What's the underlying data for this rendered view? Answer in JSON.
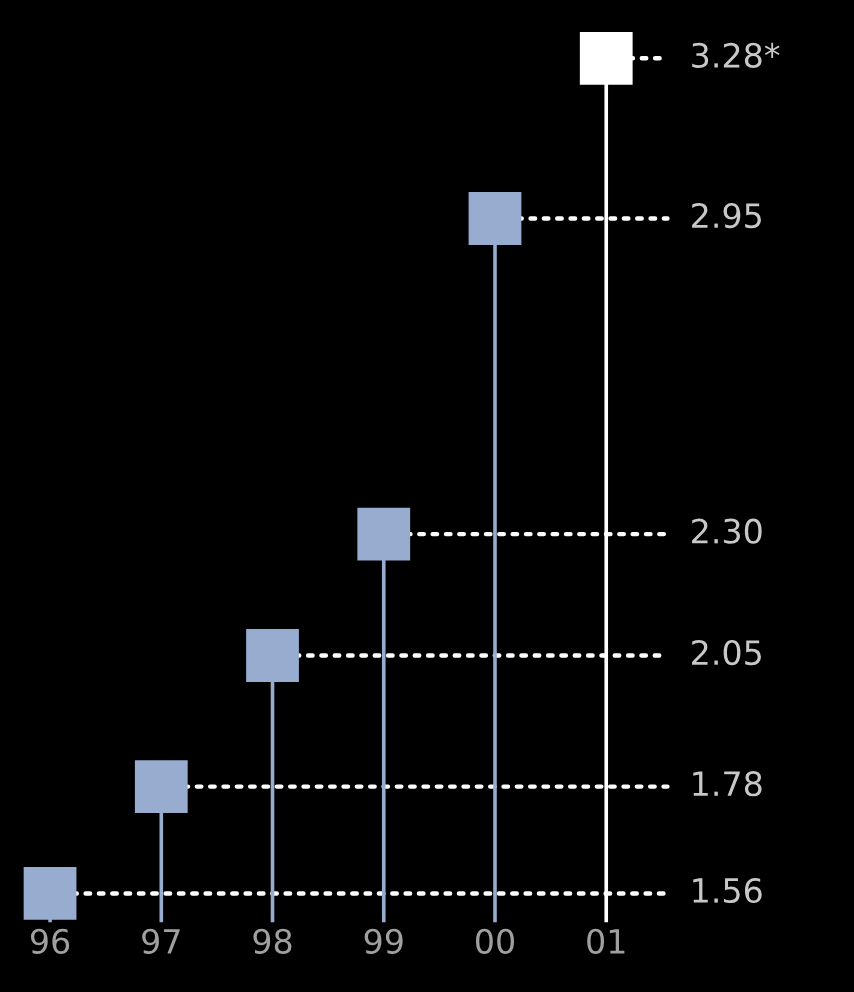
{
  "chart_data": {
    "type": "lollipop",
    "categories": [
      "96",
      "97",
      "98",
      "99",
      "00",
      "01"
    ],
    "values": [
      1.56,
      1.78,
      2.05,
      2.3,
      2.95,
      3.28
    ],
    "value_labels": [
      "1.56",
      "1.78",
      "2.05",
      "2.30",
      "2.95",
      "3.28*"
    ],
    "colors": [
      "#98acd0",
      "#98acd0",
      "#98acd0",
      "#98acd0",
      "#98acd0",
      "#ffffff"
    ],
    "marker": "square",
    "ylim": [
      1.5,
      3.4
    ],
    "grid": false,
    "legend": false
  }
}
